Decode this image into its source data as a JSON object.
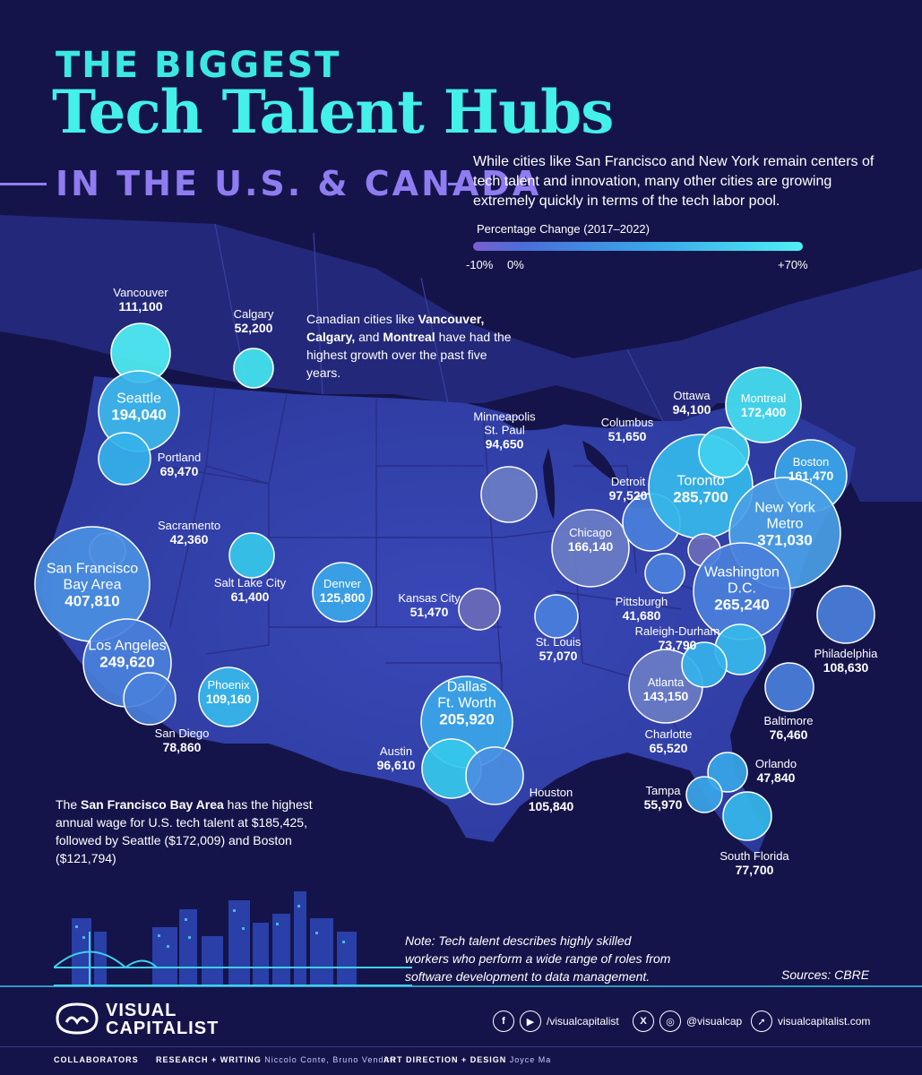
{
  "header": {
    "title_line1": "THE BIGGEST",
    "title_line2": "Tech Talent Hubs",
    "title_line3": "IN THE U.S. & CANADA"
  },
  "intro": "While cities like San Francisco and New York remain centers of tech talent and innovation, many other cities are growing extremely quickly in terms of the tech labor pool.",
  "legend": {
    "title": "Percentage Change (2017–2022)",
    "ticks": [
      "-10%",
      "0%",
      "+70%"
    ],
    "colors": [
      "#7b5fcf",
      "#4a6ed8",
      "#3aa8e8",
      "#4ff0f4"
    ]
  },
  "callouts": {
    "canada_parts": [
      "Canadian cities like ",
      "Vancouver,",
      " ",
      "Calgary,",
      " and ",
      "Montreal",
      " have had the highest growth over the past five years."
    ],
    "sf_parts": [
      "The ",
      "San Francisco Bay Area",
      " has the highest annual wage for U.S. tech talent at $185,425, followed by Seattle ($172,009) and Boston ($121,794)"
    ],
    "note": "Note: Tech talent describes highly skilled workers who perform a wide range of roles from software development to data management.",
    "sources": "Sources: CBRE"
  },
  "cities": [
    {
      "name": "Vancouver",
      "value": "111,100",
      "color": "#4ff0f4"
    },
    {
      "name": "Calgary",
      "value": "52,200",
      "color": "#45e6ef"
    },
    {
      "name": "Seattle",
      "value": "194,040",
      "color": "#3db8ec"
    },
    {
      "name": "Portland",
      "value": "69,470",
      "color": "#35b2ea"
    },
    {
      "name": "Sacramento",
      "value": "42,360",
      "color": "#5a6fc4"
    },
    {
      "name": "San Francisco Bay Area",
      "value": "407,810",
      "color": "#4a8fe2"
    },
    {
      "name": "Salt Lake City",
      "value": "61,400",
      "color": "#35c8ea"
    },
    {
      "name": "Denver",
      "value": "125,800",
      "color": "#3aa6e8"
    },
    {
      "name": "Los Angeles",
      "value": "249,620",
      "color": "#4a80dc"
    },
    {
      "name": "San Diego",
      "value": "78,860",
      "color": "#4a80dc"
    },
    {
      "name": "Phoenix",
      "value": "109,160",
      "color": "#35b8ea"
    },
    {
      "name": "Kansas City",
      "value": "51,470",
      "color": "#6b6ab8"
    },
    {
      "name": "Minneapolis St. Paul",
      "value": "94,650",
      "color": "#6a7cc4"
    },
    {
      "name": "Chicago",
      "value": "166,140",
      "color": "#6a7cc4"
    },
    {
      "name": "St. Louis",
      "value": "57,070",
      "color": "#4a80dc"
    },
    {
      "name": "Dallas Ft. Worth",
      "value": "205,920",
      "color": "#3aa6e8"
    },
    {
      "name": "Austin",
      "value": "96,610",
      "color": "#35c8ea"
    },
    {
      "name": "Houston",
      "value": "105,840",
      "color": "#4a8fe2"
    },
    {
      "name": "Columbus",
      "value": "51,650",
      "color": "#4a80dc"
    },
    {
      "name": "Detroit",
      "value": "97,520",
      "color": "#4a80dc"
    },
    {
      "name": "Toronto",
      "value": "285,700",
      "color": "#35b8ea"
    },
    {
      "name": "Ottawa",
      "value": "94,100",
      "color": "#40d0ee"
    },
    {
      "name": "Montreal",
      "value": "172,400",
      "color": "#45e0f0"
    },
    {
      "name": "Boston",
      "value": "161,470",
      "color": "#3aa6e8"
    },
    {
      "name": "New York Metro",
      "value": "371,030",
      "color": "#4a9fe6"
    },
    {
      "name": "Pittsburgh",
      "value": "41,680",
      "color": "#6b6ab8"
    },
    {
      "name": "Washington D.C.",
      "value": "265,240",
      "color": "#4a80dc"
    },
    {
      "name": "Philadelphia",
      "value": "108,630",
      "color": "#4a80dc"
    },
    {
      "name": "Raleigh-Durham",
      "value": "73,790",
      "color": "#35b8ea"
    },
    {
      "name": "Baltimore",
      "value": "76,460",
      "color": "#4a80dc"
    },
    {
      "name": "Atlanta",
      "value": "143,150",
      "color": "#6a7cc4"
    },
    {
      "name": "Charlotte",
      "value": "65,520",
      "color": "#35b2ea"
    },
    {
      "name": "Orlando",
      "value": "47,840",
      "color": "#3aa6e8"
    },
    {
      "name": "Tampa",
      "value": "55,970",
      "color": "#3aa6e8"
    },
    {
      "name": "South Florida",
      "value": "77,700",
      "color": "#35b8ea"
    }
  ],
  "footer": {
    "brand_line1": "VISUAL",
    "brand_line2": "CAPITALIST",
    "handle1": "/visualcapitalist",
    "handle2": "@visualcap",
    "website": "visualcapitalist.com",
    "collab_label": "COLLABORATORS",
    "research_label": "RESEARCH + WRITING",
    "research_names": "Niccolo Conte, Bruno Venditti",
    "design_label": "ART DIRECTION + DESIGN",
    "design_names": "Joyce Ma"
  },
  "icons": [
    "facebook-icon",
    "youtube-icon",
    "x-icon",
    "instagram-icon",
    "cursor-icon"
  ]
}
